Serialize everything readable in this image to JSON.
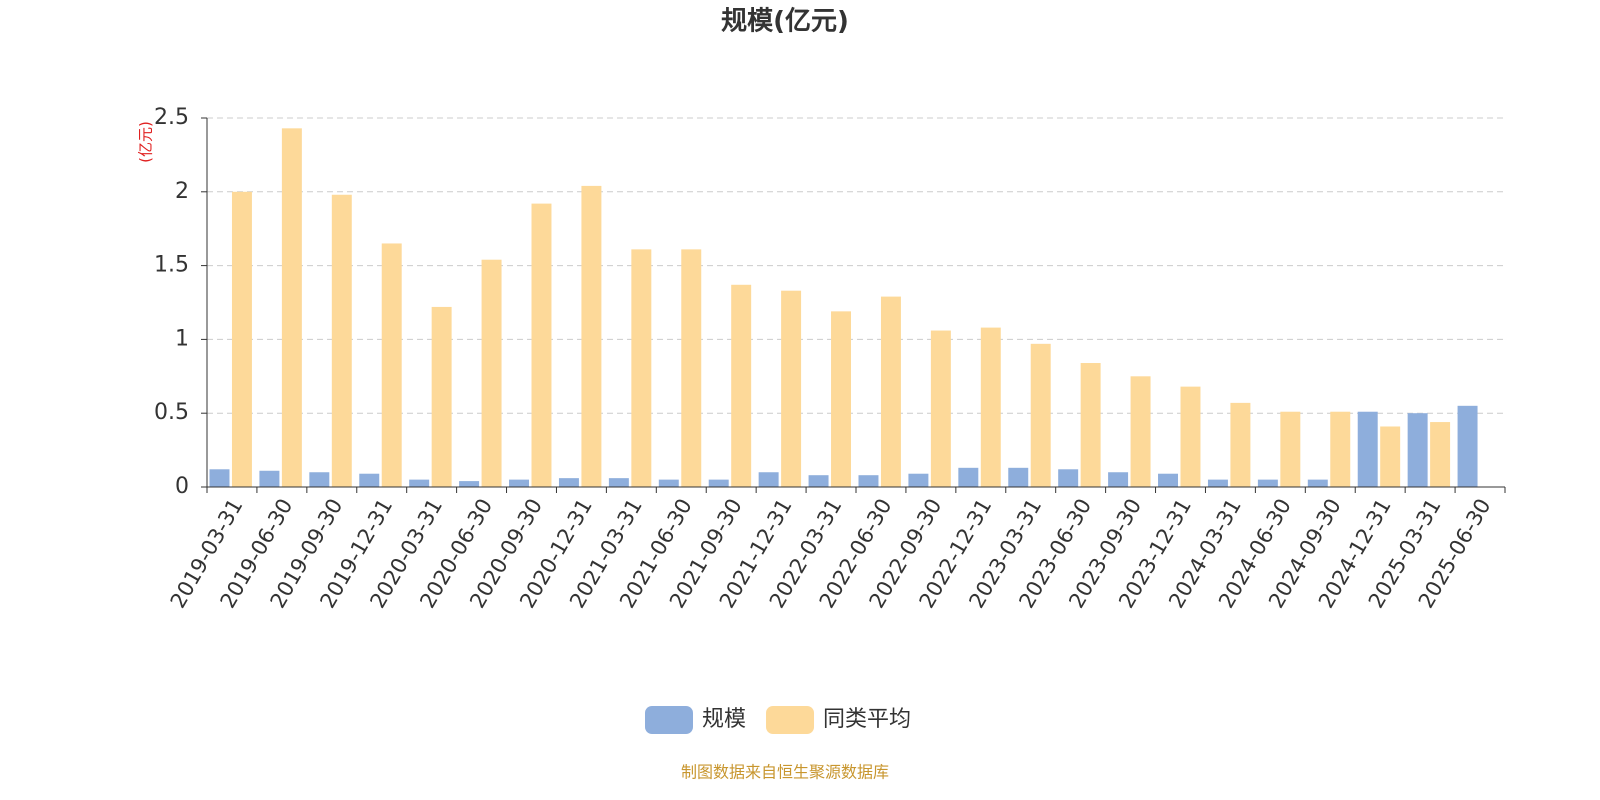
{
  "chart_data": {
    "type": "bar",
    "title": "规模(亿元)",
    "y_unit_label": "(亿元)",
    "source": "制图数据来自恒生聚源数据库",
    "categories": [
      "2019-03-31",
      "2019-06-30",
      "2019-09-30",
      "2019-12-31",
      "2020-03-31",
      "2020-06-30",
      "2020-09-30",
      "2020-12-31",
      "2021-03-31",
      "2021-06-30",
      "2021-09-30",
      "2021-12-31",
      "2022-03-31",
      "2022-06-30",
      "2022-09-30",
      "2022-12-31",
      "2023-03-31",
      "2023-06-30",
      "2023-09-30",
      "2023-12-31",
      "2024-03-31",
      "2024-06-30",
      "2024-09-30",
      "2024-12-31",
      "2025-03-31",
      "2025-06-30"
    ],
    "series": [
      {
        "name": "规模",
        "color": "#8eaedc",
        "values": [
          0.12,
          0.11,
          0.1,
          0.09,
          0.05,
          0.04,
          0.05,
          0.06,
          0.06,
          0.05,
          0.05,
          0.1,
          0.08,
          0.08,
          0.09,
          0.13,
          0.13,
          0.12,
          0.1,
          0.09,
          0.05,
          0.05,
          0.05,
          0.51,
          0.5,
          0.55
        ]
      },
      {
        "name": "同类平均",
        "color": "#fdd999",
        "values": [
          2.0,
          2.43,
          1.98,
          1.65,
          1.22,
          1.54,
          1.92,
          2.04,
          1.61,
          1.61,
          1.37,
          1.33,
          1.19,
          1.29,
          1.06,
          1.08,
          0.97,
          0.84,
          0.75,
          0.68,
          0.57,
          0.51,
          0.51,
          0.41,
          0.44,
          null
        ]
      }
    ],
    "ylim": [
      0,
      2.5
    ],
    "yticks": [
      0,
      0.5,
      1,
      1.5,
      2,
      2.5
    ],
    "grid": true
  }
}
